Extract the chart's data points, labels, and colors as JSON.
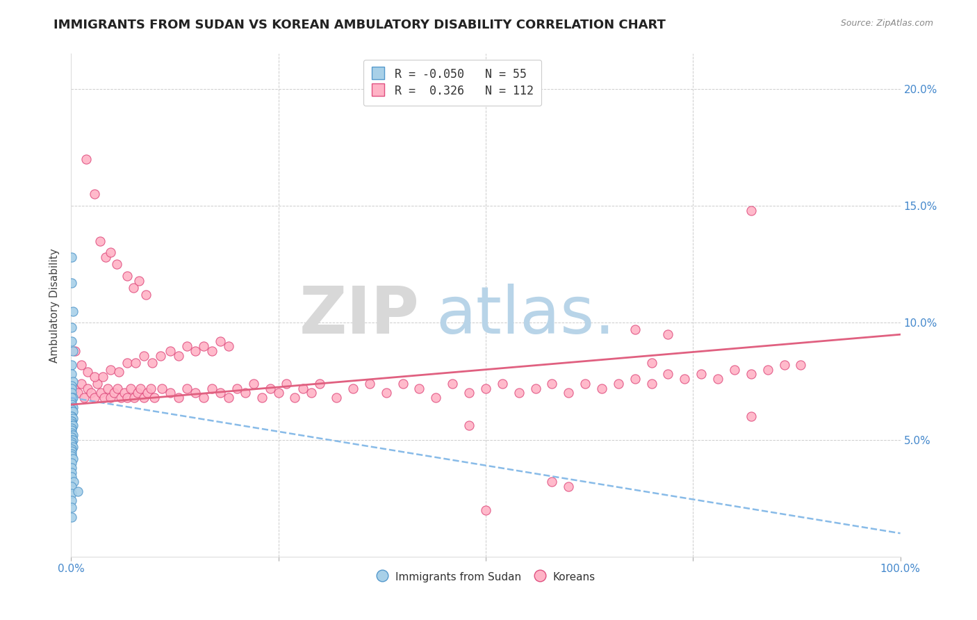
{
  "title": "IMMIGRANTS FROM SUDAN VS KOREAN AMBULATORY DISABILITY CORRELATION CHART",
  "source": "Source: ZipAtlas.com",
  "ylabel": "Ambulatory Disability",
  "blue_color": "#a8d0e8",
  "pink_color": "#ffb3c6",
  "blue_edge_color": "#5599cc",
  "pink_edge_color": "#e05080",
  "blue_line_color": "#88bbe8",
  "pink_line_color": "#e06080",
  "tick_color": "#4488cc",
  "blue_scatter": [
    [
      0.001,
      0.128
    ],
    [
      0.001,
      0.117
    ],
    [
      0.002,
      0.105
    ],
    [
      0.001,
      0.098
    ],
    [
      0.001,
      0.092
    ],
    [
      0.002,
      0.088
    ],
    [
      0.001,
      0.082
    ],
    [
      0.001,
      0.078
    ],
    [
      0.002,
      0.075
    ],
    [
      0.001,
      0.073
    ],
    [
      0.001,
      0.072
    ],
    [
      0.001,
      0.07
    ],
    [
      0.002,
      0.068
    ],
    [
      0.001,
      0.068
    ],
    [
      0.001,
      0.066
    ],
    [
      0.001,
      0.065
    ],
    [
      0.002,
      0.064
    ],
    [
      0.001,
      0.063
    ],
    [
      0.001,
      0.062
    ],
    [
      0.002,
      0.062
    ],
    [
      0.001,
      0.06
    ],
    [
      0.001,
      0.06
    ],
    [
      0.002,
      0.059
    ],
    [
      0.001,
      0.058
    ],
    [
      0.001,
      0.058
    ],
    [
      0.001,
      0.057
    ],
    [
      0.001,
      0.056
    ],
    [
      0.002,
      0.056
    ],
    [
      0.001,
      0.055
    ],
    [
      0.001,
      0.054
    ],
    [
      0.001,
      0.053
    ],
    [
      0.001,
      0.052
    ],
    [
      0.002,
      0.052
    ],
    [
      0.001,
      0.051
    ],
    [
      0.001,
      0.05
    ],
    [
      0.002,
      0.05
    ],
    [
      0.001,
      0.049
    ],
    [
      0.001,
      0.048
    ],
    [
      0.002,
      0.047
    ],
    [
      0.001,
      0.046
    ],
    [
      0.001,
      0.045
    ],
    [
      0.001,
      0.044
    ],
    [
      0.001,
      0.043
    ],
    [
      0.002,
      0.042
    ],
    [
      0.001,
      0.04
    ],
    [
      0.001,
      0.038
    ],
    [
      0.001,
      0.036
    ],
    [
      0.001,
      0.034
    ],
    [
      0.003,
      0.032
    ],
    [
      0.001,
      0.03
    ],
    [
      0.001,
      0.027
    ],
    [
      0.008,
      0.028
    ],
    [
      0.001,
      0.024
    ],
    [
      0.001,
      0.021
    ],
    [
      0.001,
      0.017
    ]
  ],
  "pink_scatter": [
    [
      0.004,
      0.072
    ],
    [
      0.008,
      0.07
    ],
    [
      0.012,
      0.074
    ],
    [
      0.016,
      0.068
    ],
    [
      0.02,
      0.072
    ],
    [
      0.024,
      0.07
    ],
    [
      0.028,
      0.068
    ],
    [
      0.032,
      0.074
    ],
    [
      0.036,
      0.07
    ],
    [
      0.04,
      0.068
    ],
    [
      0.044,
      0.072
    ],
    [
      0.048,
      0.068
    ],
    [
      0.052,
      0.07
    ],
    [
      0.056,
      0.072
    ],
    [
      0.06,
      0.068
    ],
    [
      0.064,
      0.07
    ],
    [
      0.068,
      0.068
    ],
    [
      0.072,
      0.072
    ],
    [
      0.076,
      0.068
    ],
    [
      0.08,
      0.07
    ],
    [
      0.084,
      0.072
    ],
    [
      0.088,
      0.068
    ],
    [
      0.092,
      0.07
    ],
    [
      0.096,
      0.072
    ],
    [
      0.1,
      0.068
    ],
    [
      0.11,
      0.072
    ],
    [
      0.12,
      0.07
    ],
    [
      0.13,
      0.068
    ],
    [
      0.14,
      0.072
    ],
    [
      0.15,
      0.07
    ],
    [
      0.16,
      0.068
    ],
    [
      0.17,
      0.072
    ],
    [
      0.18,
      0.07
    ],
    [
      0.19,
      0.068
    ],
    [
      0.2,
      0.072
    ],
    [
      0.21,
      0.07
    ],
    [
      0.22,
      0.074
    ],
    [
      0.23,
      0.068
    ],
    [
      0.24,
      0.072
    ],
    [
      0.25,
      0.07
    ],
    [
      0.26,
      0.074
    ],
    [
      0.27,
      0.068
    ],
    [
      0.28,
      0.072
    ],
    [
      0.29,
      0.07
    ],
    [
      0.3,
      0.074
    ],
    [
      0.32,
      0.068
    ],
    [
      0.34,
      0.072
    ],
    [
      0.36,
      0.074
    ],
    [
      0.38,
      0.07
    ],
    [
      0.4,
      0.074
    ],
    [
      0.42,
      0.072
    ],
    [
      0.44,
      0.068
    ],
    [
      0.46,
      0.074
    ],
    [
      0.48,
      0.07
    ],
    [
      0.5,
      0.072
    ],
    [
      0.52,
      0.074
    ],
    [
      0.54,
      0.07
    ],
    [
      0.56,
      0.072
    ],
    [
      0.58,
      0.074
    ],
    [
      0.6,
      0.07
    ],
    [
      0.62,
      0.074
    ],
    [
      0.64,
      0.072
    ],
    [
      0.66,
      0.074
    ],
    [
      0.68,
      0.076
    ],
    [
      0.7,
      0.074
    ],
    [
      0.72,
      0.078
    ],
    [
      0.74,
      0.076
    ],
    [
      0.76,
      0.078
    ],
    [
      0.78,
      0.076
    ],
    [
      0.8,
      0.08
    ],
    [
      0.82,
      0.078
    ],
    [
      0.84,
      0.08
    ],
    [
      0.86,
      0.082
    ],
    [
      0.88,
      0.082
    ],
    [
      0.018,
      0.17
    ],
    [
      0.028,
      0.155
    ],
    [
      0.035,
      0.135
    ],
    [
      0.042,
      0.128
    ],
    [
      0.048,
      0.13
    ],
    [
      0.055,
      0.125
    ],
    [
      0.068,
      0.12
    ],
    [
      0.075,
      0.115
    ],
    [
      0.082,
      0.118
    ],
    [
      0.09,
      0.112
    ],
    [
      0.82,
      0.148
    ],
    [
      0.005,
      0.088
    ],
    [
      0.012,
      0.082
    ],
    [
      0.02,
      0.079
    ],
    [
      0.028,
      0.077
    ],
    [
      0.038,
      0.077
    ],
    [
      0.048,
      0.08
    ],
    [
      0.058,
      0.079
    ],
    [
      0.068,
      0.083
    ],
    [
      0.078,
      0.083
    ],
    [
      0.088,
      0.086
    ],
    [
      0.098,
      0.083
    ],
    [
      0.108,
      0.086
    ],
    [
      0.12,
      0.088
    ],
    [
      0.13,
      0.086
    ],
    [
      0.14,
      0.09
    ],
    [
      0.15,
      0.088
    ],
    [
      0.16,
      0.09
    ],
    [
      0.17,
      0.088
    ],
    [
      0.18,
      0.092
    ],
    [
      0.19,
      0.09
    ],
    [
      0.48,
      0.056
    ],
    [
      0.58,
      0.032
    ],
    [
      0.5,
      0.02
    ],
    [
      0.6,
      0.03
    ],
    [
      0.68,
      0.097
    ],
    [
      0.7,
      0.083
    ],
    [
      0.72,
      0.095
    ],
    [
      0.82,
      0.06
    ]
  ],
  "xlim": [
    0.0,
    1.0
  ],
  "ylim": [
    0.0,
    0.215
  ],
  "yticks": [
    0.0,
    0.05,
    0.1,
    0.15,
    0.2
  ],
  "ytick_labels": [
    "",
    "5.0%",
    "10.0%",
    "15.0%",
    "20.0%"
  ],
  "xticks": [
    0.0,
    0.25,
    0.5,
    0.75,
    1.0
  ],
  "xtick_labels": [
    "0.0%",
    "",
    "",
    "",
    "100.0%"
  ],
  "title_fontsize": 13,
  "axis_fontsize": 11
}
